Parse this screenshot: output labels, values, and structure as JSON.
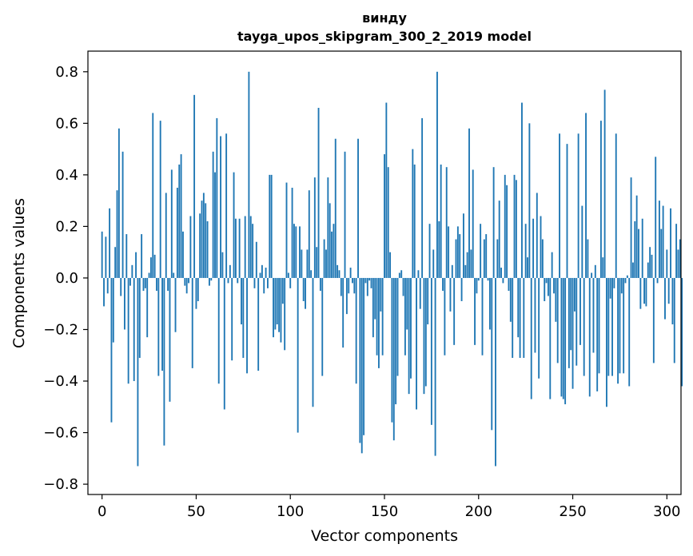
{
  "chart_data": {
    "type": "bar",
    "title_line1": "винду",
    "title_line2": "tayga_upos_skipgram_300_2_2019 model",
    "xlabel": "Vector components",
    "ylabel": "Components values",
    "xlim": [
      -7.5,
      307.5
    ],
    "ylim": [
      -0.84,
      0.88
    ],
    "xticks": [
      0,
      50,
      100,
      150,
      200,
      250,
      300
    ],
    "xtick_labels": [
      "0",
      "50",
      "100",
      "150",
      "200",
      "250",
      "300"
    ],
    "yticks": [
      -0.8,
      -0.6,
      -0.4,
      -0.2,
      0.0,
      0.2,
      0.4,
      0.6,
      0.8
    ],
    "ytick_labels": [
      "−0.8",
      "−0.6",
      "−0.4",
      "−0.2",
      "0.0",
      "0.2",
      "0.4",
      "0.6",
      "0.8"
    ],
    "bar_color": "#1f77b4",
    "values": [
      0.18,
      -0.11,
      0.16,
      -0.06,
      0.27,
      -0.56,
      -0.25,
      0.12,
      0.34,
      0.58,
      -0.07,
      0.49,
      -0.2,
      0.17,
      -0.41,
      -0.03,
      0.05,
      -0.4,
      0.1,
      -0.73,
      -0.31,
      0.17,
      -0.05,
      -0.04,
      -0.23,
      0.02,
      0.08,
      0.64,
      0.09,
      -0.05,
      -0.38,
      0.61,
      -0.36,
      -0.65,
      0.33,
      -0.05,
      -0.48,
      0.42,
      0.02,
      -0.21,
      0.35,
      0.44,
      0.48,
      0.18,
      -0.03,
      -0.06,
      -0.02,
      0.24,
      -0.35,
      0.71,
      -0.12,
      -0.09,
      0.25,
      0.3,
      0.33,
      0.29,
      0.22,
      -0.03,
      -0.01,
      0.49,
      0.41,
      0.62,
      -0.41,
      0.55,
      0.1,
      -0.51,
      0.56,
      -0.02,
      0.05,
      -0.32,
      0.41,
      0.23,
      -0.02,
      0.23,
      -0.18,
      -0.31,
      0.24,
      -0.37,
      0.8,
      0.24,
      0.21,
      -0.04,
      0.14,
      -0.36,
      0.02,
      0.05,
      -0.06,
      0.04,
      -0.04,
      0.4,
      0.4,
      -0.23,
      -0.2,
      -0.18,
      -0.21,
      -0.25,
      -0.1,
      -0.28,
      0.37,
      0.02,
      -0.04,
      0.35,
      0.21,
      0.2,
      -0.6,
      0.2,
      0.11,
      -0.09,
      -0.12,
      0.11,
      0.34,
      0.03,
      -0.5,
      0.39,
      0.12,
      0.66,
      -0.05,
      -0.38,
      0.15,
      0.11,
      0.39,
      0.29,
      0.18,
      0.21,
      0.54,
      0.05,
      0.03,
      -0.07,
      -0.27,
      0.49,
      -0.14,
      -0.06,
      0.04,
      -0.02,
      -0.06,
      -0.41,
      0.54,
      -0.64,
      -0.68,
      -0.61,
      -0.02,
      -0.07,
      -0.01,
      -0.04,
      -0.23,
      -0.16,
      -0.3,
      -0.35,
      -0.13,
      -0.3,
      0.48,
      0.68,
      0.43,
      0.1,
      -0.56,
      -0.63,
      -0.49,
      -0.38,
      0.02,
      0.03,
      -0.07,
      -0.3,
      -0.2,
      -0.45,
      -0.39,
      0.5,
      0.44,
      -0.51,
      0.03,
      -0.12,
      0.62,
      -0.45,
      -0.42,
      -0.18,
      0.21,
      -0.57,
      0.11,
      -0.69,
      0.8,
      0.22,
      0.44,
      -0.05,
      -0.3,
      0.43,
      0.2,
      -0.13,
      0.05,
      -0.26,
      0.15,
      0.2,
      0.17,
      -0.09,
      0.25,
      0.05,
      0.1,
      0.58,
      0.11,
      0.42,
      -0.26,
      -0.06,
      -0.01,
      0.21,
      -0.3,
      0.15,
      0.17,
      -0.01,
      -0.2,
      -0.59,
      0.43,
      -0.73,
      0.15,
      0.3,
      0.04,
      -0.02,
      0.4,
      0.36,
      -0.05,
      -0.17,
      -0.31,
      0.4,
      0.38,
      -0.23,
      -0.31,
      0.68,
      -0.31,
      0.21,
      0.08,
      0.6,
      -0.47,
      0.23,
      -0.29,
      0.33,
      -0.39,
      0.24,
      0.15,
      -0.09,
      -0.02,
      -0.07,
      -0.47,
      0.1,
      -0.06,
      -0.17,
      -0.33,
      0.56,
      -0.46,
      -0.47,
      -0.49,
      0.52,
      -0.35,
      -0.28,
      -0.43,
      -0.13,
      -0.34,
      0.56,
      -0.26,
      0.28,
      -0.38,
      0.64,
      0.15,
      -0.46,
      0.02,
      -0.29,
      0.05,
      -0.44,
      -0.37,
      0.61,
      0.08,
      0.73,
      -0.5,
      -0.38,
      -0.08,
      -0.38,
      -0.04,
      0.56,
      -0.41,
      -0.37,
      -0.06,
      -0.37,
      -0.02,
      0.01,
      -0.42,
      0.39,
      0.06,
      0.22,
      0.32,
      0.19,
      -0.12,
      0.23,
      -0.1,
      -0.11,
      0.06,
      0.12,
      0.09,
      -0.33,
      0.47,
      -0.02,
      0.3,
      0.19,
      0.28,
      -0.16,
      0.11,
      -0.1,
      0.27,
      -0.18,
      -0.33,
      0.21,
      0.11,
      0.15,
      -0.42
    ]
  }
}
